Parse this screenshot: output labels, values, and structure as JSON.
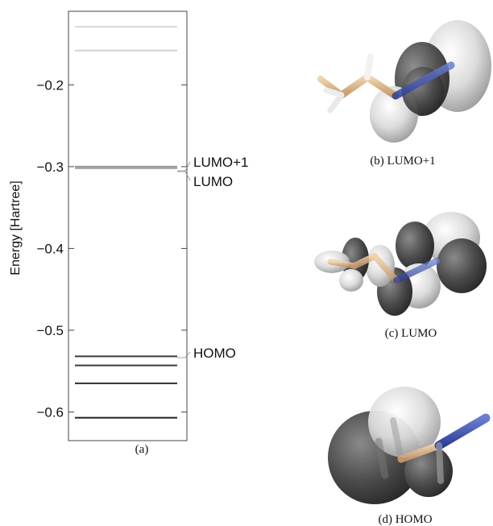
{
  "panel_a": {
    "caption": "(a)",
    "y_axis_label": "Energy [Hartree]",
    "y_range": [
      -0.635,
      -0.11
    ],
    "ticks": [
      {
        "value": -0.2,
        "label": "−0.2"
      },
      {
        "value": -0.3,
        "label": "−0.3"
      },
      {
        "value": -0.4,
        "label": "−0.4"
      },
      {
        "value": -0.5,
        "label": "−0.5"
      },
      {
        "value": -0.6,
        "label": "−0.6"
      }
    ],
    "levels": [
      {
        "energy": -0.129,
        "color": "#d8d8d8"
      },
      {
        "energy": -0.158,
        "color": "#d0d0d0"
      },
      {
        "energy": -0.3,
        "color": "#8f9898"
      },
      {
        "energy": -0.302,
        "color": "#a5a5a5"
      },
      {
        "energy": -0.532,
        "color": "#3a3a3a"
      },
      {
        "energy": -0.543,
        "color": "#3a3a3a"
      },
      {
        "energy": -0.565,
        "color": "#2e2e2e"
      },
      {
        "energy": -0.607,
        "color": "#222222"
      }
    ],
    "labels": {
      "lumo_plus_1": "LUMO+1",
      "lumo": "LUMO",
      "homo": "HOMO"
    }
  },
  "panel_b": {
    "caption": "(b)  LUMO+1"
  },
  "panel_c": {
    "caption": "(c)  LUMO"
  },
  "panel_d": {
    "caption": "(d)  HOMO"
  }
}
